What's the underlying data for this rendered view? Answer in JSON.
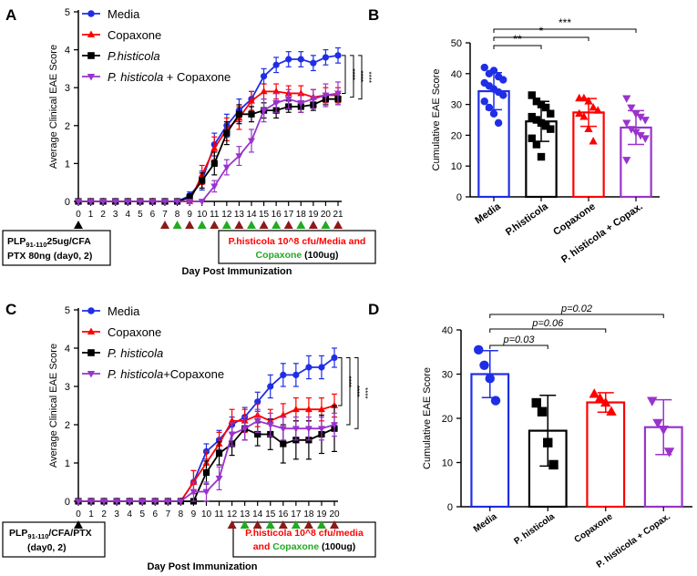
{
  "colors": {
    "media": "#1f2ee6",
    "copaxone": "#ff0000",
    "histicola": "#000000",
    "combo": "#9933cc",
    "ticks_red": "#8b1a1a",
    "ticks_green": "#22aa22"
  },
  "chart_data": [
    {
      "panel": "A",
      "type": "line",
      "xlabel": "Day Post Immunization",
      "ylabel": "Average Clinical EAE Score",
      "xlim": [
        0,
        21
      ],
      "ylim": [
        0,
        5
      ],
      "x": [
        0,
        1,
        2,
        3,
        4,
        5,
        6,
        7,
        8,
        9,
        10,
        11,
        12,
        13,
        14,
        15,
        16,
        17,
        18,
        19,
        20,
        21
      ],
      "series": [
        {
          "key": "media",
          "name": "Media",
          "marker": "circle",
          "values": [
            0,
            0,
            0,
            0,
            0,
            0,
            0,
            0,
            0,
            0.15,
            0.55,
            1.5,
            2.0,
            2.4,
            2.7,
            3.3,
            3.6,
            3.75,
            3.75,
            3.65,
            3.8,
            3.85
          ],
          "errors": [
            0,
            0,
            0,
            0,
            0,
            0,
            0,
            0,
            0,
            0.1,
            0.25,
            0.3,
            0.3,
            0.3,
            0.2,
            0.2,
            0.2,
            0.2,
            0.2,
            0.2,
            0.2,
            0.2
          ]
        },
        {
          "key": "copaxone",
          "name": "Copaxone",
          "marker": "triangle",
          "values": [
            0,
            0,
            0,
            0,
            0,
            0,
            0,
            0,
            0,
            0,
            0.7,
            1.4,
            1.9,
            2.2,
            2.65,
            2.9,
            2.9,
            2.85,
            2.85,
            2.75,
            2.8,
            2.8
          ],
          "errors": [
            0,
            0,
            0,
            0,
            0,
            0,
            0,
            0,
            0,
            0,
            0.25,
            0.3,
            0.3,
            0.3,
            0.25,
            0.2,
            0.2,
            0.2,
            0.2,
            0.2,
            0.2,
            0.2
          ]
        },
        {
          "key": "histicola",
          "name": "P.histicola",
          "marker": "square",
          "values": [
            0,
            0,
            0,
            0,
            0,
            0,
            0,
            0,
            0,
            0.1,
            0.55,
            1.0,
            1.8,
            2.3,
            2.3,
            2.4,
            2.4,
            2.5,
            2.5,
            2.55,
            2.7,
            2.7
          ],
          "errors": [
            0,
            0,
            0,
            0,
            0,
            0,
            0,
            0,
            0,
            0.1,
            0.2,
            0.3,
            0.3,
            0.25,
            0.2,
            0.2,
            0.2,
            0.15,
            0.15,
            0.15,
            0.15,
            0.15
          ]
        },
        {
          "key": "combo",
          "name": "P. histicola + Copaxone",
          "marker": "triangle-down",
          "values": [
            0,
            0,
            0,
            0,
            0,
            0,
            0,
            0,
            0,
            0,
            0,
            0.4,
            0.9,
            1.2,
            1.6,
            2.4,
            2.6,
            2.7,
            2.6,
            2.7,
            2.8,
            2.85
          ],
          "errors": [
            0,
            0,
            0,
            0,
            0,
            0,
            0,
            0,
            0,
            0,
            0,
            0.15,
            0.2,
            0.25,
            0.3,
            0.3,
            0.25,
            0.25,
            0.25,
            0.25,
            0.3,
            0.3
          ]
        }
      ],
      "significance": [
        "****",
        "****",
        "****"
      ],
      "treatment_days": [
        7,
        8,
        9,
        10,
        11,
        12,
        13,
        14,
        15,
        16,
        17,
        18,
        19,
        20,
        21
      ],
      "immunization_text": "PLP91-110 25ug/CFA PTX 80ng (day0, 2)",
      "treatment_text": "P.histicola 10^8 cfu/Media and Copaxone (100ug)"
    },
    {
      "panel": "B",
      "type": "bar",
      "ylabel": "Cumulative EAE Score",
      "ylim": [
        0,
        50
      ],
      "categories": [
        "Media",
        "P.histicola",
        "Copaxone",
        "P. histicola + Copax."
      ],
      "values": [
        34.3,
        24.5,
        27.4,
        22.5
      ],
      "sd": [
        6.0,
        6.5,
        4.5,
        5.5
      ],
      "points": [
        [
          42,
          40,
          41,
          39,
          38,
          37,
          36,
          35,
          34,
          33,
          31,
          29,
          27,
          24
        ],
        [
          33,
          31,
          30,
          29,
          27,
          26,
          25,
          24,
          23,
          22,
          19,
          17,
          13
        ],
        [
          32,
          32,
          31,
          29,
          28,
          27,
          26,
          22,
          18
        ],
        [
          32,
          29,
          27,
          26,
          25,
          24,
          22,
          21,
          20,
          19,
          12
        ]
      ],
      "comparisons": [
        {
          "from": 0,
          "to": 1,
          "label": "**"
        },
        {
          "from": 0,
          "to": 2,
          "label": "*"
        },
        {
          "from": 0,
          "to": 3,
          "label": "***"
        }
      ]
    },
    {
      "panel": "C",
      "type": "line",
      "xlabel": "Day Post Immunization",
      "ylabel": "Average Clinical EAE Score",
      "xlim": [
        0,
        20
      ],
      "ylim": [
        0,
        5
      ],
      "x": [
        0,
        1,
        2,
        3,
        4,
        5,
        6,
        7,
        8,
        9,
        10,
        11,
        12,
        13,
        14,
        15,
        16,
        17,
        18,
        19,
        20
      ],
      "series": [
        {
          "key": "media",
          "name": "Media",
          "marker": "circle",
          "values": [
            0,
            0,
            0,
            0,
            0,
            0,
            0,
            0,
            0,
            0.5,
            1.3,
            1.6,
            2.0,
            2.2,
            2.6,
            3.0,
            3.3,
            3.3,
            3.5,
            3.5,
            3.75
          ],
          "errors": [
            0,
            0,
            0,
            0,
            0,
            0,
            0,
            0,
            0,
            0.3,
            0.2,
            0.25,
            0.2,
            0.25,
            0.25,
            0.3,
            0.3,
            0.3,
            0.3,
            0.3,
            0.25
          ]
        },
        {
          "key": "copaxone",
          "name": "Copaxone",
          "marker": "triangle",
          "values": [
            0,
            0,
            0,
            0,
            0,
            0,
            0,
            0,
            0,
            0.5,
            1.0,
            1.5,
            2.1,
            2.1,
            2.25,
            2.1,
            2.25,
            2.4,
            2.4,
            2.4,
            2.5
          ],
          "errors": [
            0,
            0,
            0,
            0,
            0,
            0,
            0,
            0,
            0,
            0.3,
            0.3,
            0.3,
            0.3,
            0.3,
            0.3,
            0.3,
            0.3,
            0.3,
            0.3,
            0.3,
            0.3
          ]
        },
        {
          "key": "histicola",
          "name": "P. histicola",
          "marker": "square",
          "values": [
            0,
            0,
            0,
            0,
            0,
            0,
            0,
            0,
            0,
            0,
            0.75,
            1.25,
            1.5,
            1.9,
            1.75,
            1.75,
            1.5,
            1.6,
            1.6,
            1.75,
            1.9
          ],
          "errors": [
            0,
            0,
            0,
            0,
            0,
            0,
            0,
            0,
            0,
            0,
            0.3,
            0.3,
            0.3,
            0.3,
            0.3,
            0.4,
            0.5,
            0.5,
            0.5,
            0.5,
            0.6
          ]
        },
        {
          "key": "combo",
          "name": "P. histicola+Copaxone",
          "marker": "triangle-down",
          "values": [
            0,
            0,
            0,
            0,
            0,
            0,
            0,
            0,
            0,
            0.25,
            0.25,
            0.6,
            1.75,
            1.9,
            2.1,
            2.0,
            1.9,
            1.9,
            1.9,
            1.9,
            2.0
          ],
          "errors": [
            0,
            0,
            0,
            0,
            0,
            0,
            0,
            0,
            0,
            0.25,
            0.25,
            0.3,
            0.3,
            0.3,
            0.3,
            0.3,
            0.3,
            0.3,
            0.3,
            0.3,
            0.3
          ]
        }
      ],
      "significance": [
        "****",
        "****",
        "****"
      ],
      "treatment_days": [
        12,
        13,
        14,
        15,
        16,
        17,
        18,
        19,
        20
      ],
      "immunization_text": "PLP91-110/CFA/PTX (day0, 2)",
      "treatment_text": "P.histicola 10^8 cfu/media and Copaxone (100ug)"
    },
    {
      "panel": "D",
      "type": "bar",
      "ylabel": "Cumulative EAE Score",
      "ylim": [
        0,
        40
      ],
      "categories": [
        "Media",
        "P. histicola",
        "Copaxone",
        "P. histicola + Copax."
      ],
      "values": [
        30.0,
        17.2,
        23.6,
        18.0
      ],
      "sd": [
        5.3,
        8.0,
        2.2,
        6.2
      ],
      "points": [
        [
          35.5,
          32,
          29,
          24
        ],
        [
          23.5,
          21.5,
          14.5,
          9.5
        ],
        [
          25.5,
          24.5,
          23.5,
          21.5
        ],
        [
          24,
          19,
          17.5,
          12.5
        ]
      ],
      "comparisons": [
        {
          "from": 0,
          "to": 1,
          "label": "p=0.03"
        },
        {
          "from": 0,
          "to": 2,
          "label": "p=0.06"
        },
        {
          "from": 0,
          "to": 3,
          "label": "p=0.02"
        }
      ]
    }
  ],
  "panels": {
    "a": {
      "letter": "A",
      "immunization": {
        "line1_main": "PLP",
        "line1_sub": "91-110",
        "line1_tail": "25ug/CFA",
        "line2": "PTX 80ng (day0, 2)"
      },
      "treatment": {
        "red": "P.histicola 10^8 cfu/Media and",
        "green": "Copaxone",
        "black": " (100ug)"
      },
      "xlabel": "Day Post Immunization"
    },
    "b": {
      "letter": "B"
    },
    "c": {
      "letter": "C",
      "immunization": {
        "line1_main": "PLP",
        "line1_sub": "91-110",
        "line1_tail": "/CFA/PTX",
        "line2": "(day0, 2)"
      },
      "treatment": {
        "red1": "P.histicola 10^8 cfu/media",
        "red2": "and ",
        "green": "Copaxone",
        "black": " (100ug)"
      },
      "xlabel": "Day Post Immunization"
    },
    "d": {
      "letter": "D"
    }
  }
}
